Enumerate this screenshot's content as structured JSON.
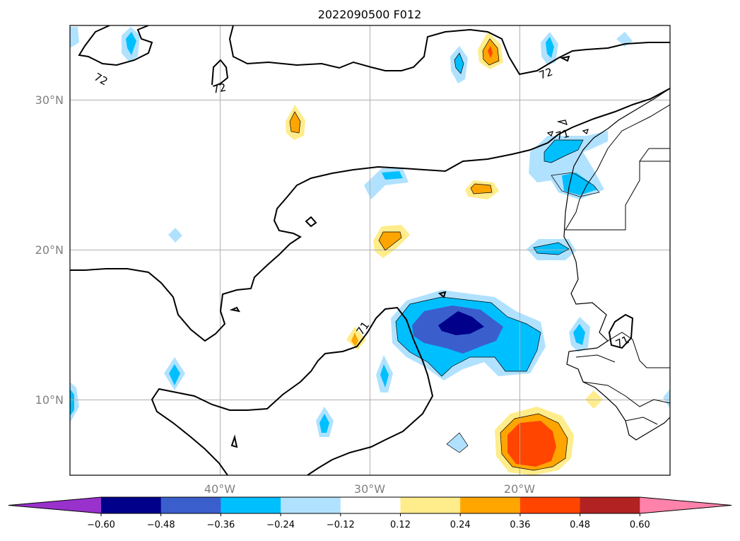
{
  "title": "2022090500 F012",
  "map": {
    "lat_ticks": [
      "30°N",
      "20°N",
      "10°N"
    ],
    "lon_ticks": [
      "40°W",
      "30°W",
      "20°W"
    ],
    "contour_labels": [
      "72",
      "72",
      "72",
      "71",
      "71",
      "71"
    ]
  },
  "colorbar": {
    "labels": [
      "−0.60",
      "−0.48",
      "−0.36",
      "−0.24",
      "−0.12",
      "0.12",
      "0.24",
      "0.36",
      "0.48",
      "0.60"
    ],
    "colors": [
      "#9932cc",
      "#00008b",
      "#3a5fcd",
      "#00bfff",
      "#b0e2ff",
      "#ffffff",
      "#ffec8b",
      "#ffa500",
      "#ff4500",
      "#b22222",
      "#ff82ab"
    ]
  },
  "colors": {
    "grid": "#b0b0b0",
    "contour": "#000000"
  }
}
